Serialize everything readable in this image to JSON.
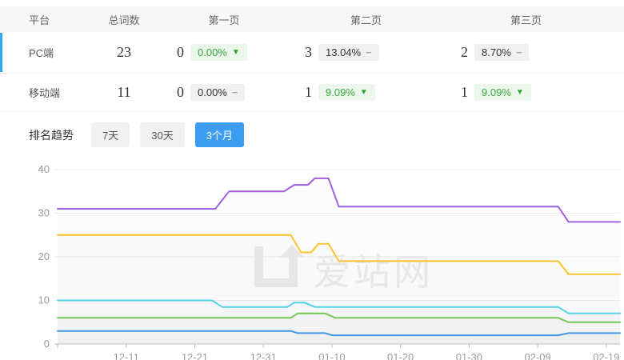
{
  "table": {
    "headers": [
      "平台",
      "总词数",
      "第一页",
      "第二页",
      "第三页"
    ],
    "rows": [
      {
        "platform": "PC端",
        "total": "23",
        "page1": {
          "count": "0",
          "pct": "0.00%",
          "trend": "down",
          "style": "green"
        },
        "page2": {
          "count": "3",
          "pct": "13.04%",
          "trend": "flat",
          "style": "gray"
        },
        "page3": {
          "count": "2",
          "pct": "8.70%",
          "trend": "flat",
          "style": "gray"
        }
      },
      {
        "platform": "移动端",
        "total": "11",
        "page1": {
          "count": "0",
          "pct": "0.00%",
          "trend": "flat",
          "style": "gray"
        },
        "page2": {
          "count": "1",
          "pct": "9.09%",
          "trend": "down",
          "style": "green"
        },
        "page3": {
          "count": "1",
          "pct": "9.09%",
          "trend": "down",
          "style": "green"
        }
      }
    ]
  },
  "icons": {
    "down_triangle": "▼",
    "flat_dash": "−"
  },
  "trend_section": {
    "label": "排名趋势",
    "tabs": [
      {
        "label": "7天",
        "active": false
      },
      {
        "label": "30天",
        "active": false
      },
      {
        "label": "3个月",
        "active": true
      }
    ]
  },
  "watermark": {
    "text": "爱站网"
  },
  "colors": {
    "accent_blue": "#3c9cf0",
    "row_indicator": "#2aabf2",
    "badge_green_bg": "#eaf7ea",
    "badge_green_text": "#3fa53f",
    "badge_gray_bg": "#f1f1f1",
    "axis_text": "#999"
  },
  "chart_data": {
    "type": "line",
    "title": "",
    "xlabel": "",
    "ylabel": "",
    "grid": "horizontal",
    "legend": "none",
    "y_axis": {
      "ticks": [
        0,
        10,
        20,
        30,
        40
      ],
      "range": [
        0,
        40
      ]
    },
    "x_axis": {
      "tick_labels": [
        "12-11",
        "12-21",
        "12-31",
        "01-10",
        "01-20",
        "01-30",
        "02-09",
        "02-19"
      ],
      "tick_days": [
        10,
        20,
        30,
        40,
        50,
        60,
        70,
        80
      ],
      "range_days": [
        0,
        82
      ]
    },
    "series": [
      {
        "name": "rank-line-purple",
        "color": "#a25fe0",
        "points": [
          [
            0,
            31
          ],
          [
            23,
            31
          ],
          [
            25,
            35
          ],
          [
            33,
            35
          ],
          [
            34.5,
            36.5
          ],
          [
            36.5,
            36.5
          ],
          [
            37.5,
            38
          ],
          [
            39.5,
            38
          ],
          [
            41,
            31.5
          ],
          [
            73,
            31.5
          ],
          [
            74.5,
            28
          ],
          [
            82,
            28
          ]
        ]
      },
      {
        "name": "rank-line-yellow",
        "color": "#fcc42c",
        "points": [
          [
            0,
            25
          ],
          [
            34,
            25
          ],
          [
            35.5,
            21
          ],
          [
            37,
            21
          ],
          [
            38,
            23
          ],
          [
            39.5,
            23
          ],
          [
            41,
            19
          ],
          [
            73,
            19
          ],
          [
            74.5,
            16
          ],
          [
            82,
            16
          ]
        ]
      },
      {
        "name": "rank-line-cyan",
        "color": "#53d2e9",
        "points": [
          [
            0,
            10
          ],
          [
            22.5,
            10
          ],
          [
            24,
            8.5
          ],
          [
            33.5,
            8.5
          ],
          [
            34.5,
            9.5
          ],
          [
            36,
            9.5
          ],
          [
            37.5,
            8.5
          ],
          [
            73,
            8.5
          ],
          [
            74.5,
            7
          ],
          [
            82,
            7
          ]
        ]
      },
      {
        "name": "rank-line-green",
        "color": "#74c857",
        "points": [
          [
            0,
            6
          ],
          [
            34,
            6
          ],
          [
            35,
            7
          ],
          [
            39,
            7
          ],
          [
            40.5,
            6
          ],
          [
            73,
            6
          ],
          [
            74.5,
            5
          ],
          [
            82,
            5
          ]
        ]
      },
      {
        "name": "rank-line-blue",
        "color": "#4297e2",
        "points": [
          [
            0,
            3
          ],
          [
            34,
            3
          ],
          [
            35,
            2.5
          ],
          [
            39,
            2.5
          ],
          [
            40,
            2
          ],
          [
            73,
            2
          ],
          [
            74.5,
            2.5
          ],
          [
            82,
            2.5
          ]
        ]
      }
    ]
  }
}
